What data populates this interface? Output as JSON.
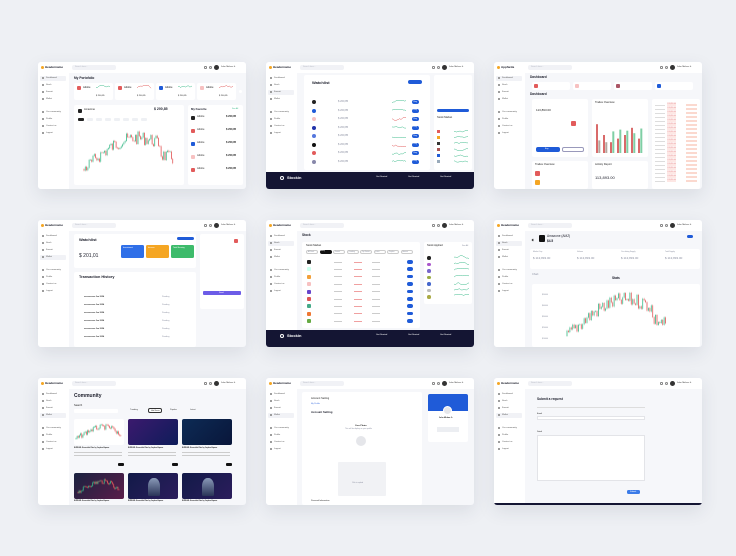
{
  "brand": "Headername",
  "brand_alt": "Appfarda",
  "user": "John Mirkan Jr",
  "search_placeholder": "Search here...",
  "sidebar": [
    "Dashboard",
    "Stock",
    "Favorit",
    "Wallet",
    "Our community",
    "Profile",
    "Contact us",
    "Logout"
  ],
  "colors": {
    "bg": "#eef0f4",
    "blue": "#1f5bd8",
    "green": "#3dbb8b",
    "red": "#e25b5b",
    "orange": "#f5a623",
    "dark": "#141533",
    "purple": "#6c5ce7"
  },
  "portfolio": {
    "title": "My Portofolio",
    "stocks": [
      {
        "name": "Adobe",
        "value": "$ 200,85"
      },
      {
        "name": "Adobe",
        "value": "$ 200,85"
      },
      {
        "name": "Adobe",
        "value": "$ 200,85"
      },
      {
        "name": "Adobe",
        "value": "$ 200,85"
      }
    ],
    "chart_name": "Amazone",
    "chart_price": "$ 200,85",
    "favorite_title": "My Favorite",
    "favorite_link": "See All",
    "favorites": [
      {
        "name": "Adobe",
        "price": "$ 200,85"
      },
      {
        "name": "Adobe",
        "price": "$ 200,85"
      },
      {
        "name": "Adobe",
        "price": "$ 200,85"
      },
      {
        "name": "Adobe",
        "price": "$ 200,85"
      },
      {
        "name": "Adobe",
        "price": "$ 200,85"
      }
    ]
  },
  "watchlist": {
    "title": "Watchlist",
    "rows": [
      "$ 200,85",
      "$ 200,85",
      "$ 200,85",
      "$ 200,85",
      "$ 200,85",
      "$ 200,85",
      "$ 200,85",
      "$ 200,85"
    ],
    "button": "Buy",
    "side_title": "Stock Market",
    "footer_brand": "Stockin",
    "footer_cols": [
      "Get Started",
      "Get Started",
      "Get Started"
    ]
  },
  "dashboard": {
    "title": "Dashboard",
    "amount": "113,893.00",
    "trades_title": "Trades Overview",
    "activity_title": "Activity Report",
    "button": "Buy",
    "table_vals": [
      "113,893.00",
      "113,893.00",
      "113,893.00",
      "113,893.00",
      "113,893.00",
      "113,893.00",
      "113,893.00",
      "113,893.00",
      "113,893.00",
      "113,893.00",
      "113,893.00",
      "113,893.00",
      "113,893.00",
      "113,893.00",
      "113,893.00",
      "113,893.00",
      "113,893.00",
      "113,893.00",
      "113,893.00",
      "113,893.00"
    ],
    "bars": [
      [
        80,
        35
      ],
      [
        50,
        30
      ],
      [
        30,
        60
      ],
      [
        40,
        65
      ],
      [
        50,
        62
      ],
      [
        70,
        55
      ],
      [
        40,
        68
      ]
    ]
  },
  "wallet": {
    "title": "Watchlist",
    "balance": "$ 201,01",
    "cards": [
      {
        "label": "Investment",
        "color": "#2f6fe8"
      },
      {
        "label": "Income",
        "color": "#f5a623"
      },
      {
        "label": "Total Earning",
        "color": "#3dbb6b"
      }
    ],
    "history_title": "Transaction History",
    "rows": [
      "xxxxxxxxxx Jan 2024",
      "xxxxxxxxxx Jan 2024",
      "xxxxxxxxxx Jan 2024",
      "xxxxxxxxxx Jan 2024",
      "xxxxxxxxxx Jan 2024",
      "xxxxxxxxxx Jan 2024"
    ],
    "status": "Pending",
    "side_button": "Send"
  },
  "stock": {
    "title": "Stock",
    "market_title": "Stock Market",
    "filters": [
      "All Stock",
      "Today",
      "Favorit",
      "Trending",
      "Top Gainer",
      "Loser",
      "Popular",
      "Newest"
    ],
    "rows": 9,
    "applied_title": "Stock Applied",
    "applied_link": "See All",
    "footer_brand": "Stockin",
    "footer_cols": [
      "Get Started",
      "Get Started",
      "Get Started"
    ]
  },
  "detail": {
    "name": "Amazone (AMZ)",
    "price": "$4.5",
    "stats": [
      {
        "label": "Market Cap",
        "value": "$ 113,893.00"
      },
      {
        "label": "Volume",
        "value": "$ 113,893.00"
      },
      {
        "label": "Circulating Supply",
        "value": "$ 113,893.00"
      },
      {
        "label": "Total Supply",
        "value": "$ 113,893.00"
      }
    ],
    "chart_label": "Chart",
    "stats_tab": "Stats",
    "y_ticks": [
      "$50000",
      "$40000",
      "$30000",
      "$20000",
      "$10000"
    ]
  },
  "community": {
    "title": "Community",
    "search_label": "Search",
    "tabs": [
      "Trending",
      "Hot News",
      "Popular",
      "Latest"
    ],
    "post_title": "EURUSD: Ensemble Rise by Jayden Kapoor",
    "posts": 6
  },
  "account": {
    "title": "Account Setting",
    "subtitle": "My Profile",
    "section": "Account Setting",
    "photo_title": "Your Photo",
    "photo_sub": "This will be display on your profile",
    "upload": "Click to upload",
    "personal": "Personal Information",
    "profile_name": "John Mirkan Jr"
  },
  "request": {
    "title": "Submit a request",
    "field1": "Email",
    "field2": "Detail",
    "submit": "Submit"
  }
}
